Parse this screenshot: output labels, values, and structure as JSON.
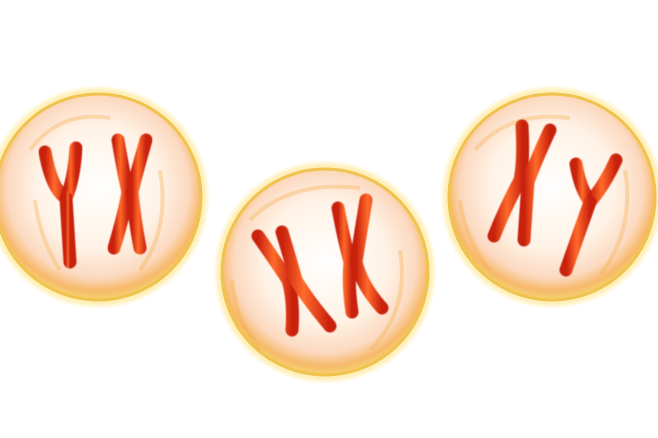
{
  "scene": {
    "background": "#ffffff",
    "membrane_color": "#f2b84a",
    "cell_interior": "#fff4e6",
    "chromosome_color": "#e8361a",
    "chromosome_highlight": "#ff7a3a",
    "cells": [
      {
        "label": "",
        "chromosomes": [
          "Y",
          "X"
        ]
      },
      {
        "label": "",
        "chromosomes": [
          "X",
          "X"
        ]
      },
      {
        "label": "",
        "chromosomes": [
          "X",
          "Y"
        ]
      }
    ]
  }
}
